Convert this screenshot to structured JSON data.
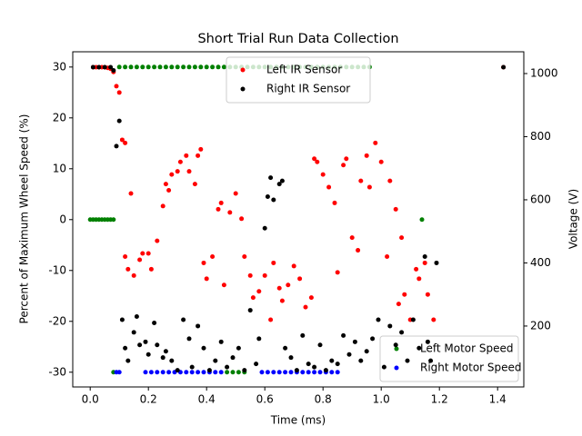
{
  "chart_data": {
    "type": "scatter",
    "title": "Short Trial Run Data Collection",
    "x_label": "Time (ms)",
    "y_label": "Percent of Maximum Wheel Speed (%)",
    "y2_label": "Voltage (V)",
    "xlim": [
      -0.06,
      1.49
    ],
    "ylim": [
      -32.9,
      33.0
    ],
    "y2lim": [
      7,
      1069
    ],
    "xticks": [
      {
        "value": 0,
        "label": "0.0"
      },
      0.2,
      0.4,
      0.6,
      0.8,
      {
        "value": 1,
        "label": "1.0"
      },
      1.2,
      1.4
    ],
    "yticks": [
      -30,
      -20,
      -10,
      0,
      10,
      20,
      30
    ],
    "y2ticks": [
      200,
      400,
      600,
      800,
      1000
    ],
    "grid": false,
    "series": [
      {
        "name": "Left Motor Speed",
        "color": "#008000",
        "legend": "lower right",
        "x": [
          0.0,
          0.01,
          0.02,
          0.03,
          0.04,
          0.05,
          0.06,
          0.07,
          0.08,
          0.1,
          0.12,
          0.14,
          0.16,
          0.18,
          0.2,
          0.22,
          0.24,
          0.26,
          0.28,
          0.3,
          0.32,
          0.34,
          0.36,
          0.38,
          0.4,
          0.42,
          0.44,
          0.46,
          0.48,
          0.5,
          0.52,
          0.54,
          0.56,
          0.58,
          0.6,
          0.62,
          0.64,
          0.66,
          0.68,
          0.7,
          0.72,
          0.74,
          0.76,
          0.78,
          0.8,
          0.82,
          0.84,
          0.86,
          0.88,
          0.9,
          0.92,
          0.94,
          0.96,
          0.08,
          0.47,
          0.49,
          0.51,
          0.53,
          1.14
        ],
        "values": [
          0,
          0,
          0,
          0,
          0,
          0,
          0,
          0,
          0,
          30,
          30,
          30,
          30,
          30,
          30,
          30,
          30,
          30,
          30,
          30,
          30,
          30,
          30,
          30,
          30,
          30,
          30,
          30,
          30,
          30,
          30,
          30,
          30,
          30,
          30,
          30,
          30,
          30,
          30,
          30,
          30,
          30,
          30,
          30,
          30,
          30,
          30,
          30,
          30,
          30,
          30,
          30,
          30,
          -30,
          -30,
          -30,
          -30,
          -30,
          0
        ]
      },
      {
        "name": "Right Motor Speed",
        "color": "#0000ff",
        "legend": "lower right",
        "x": [
          0.09,
          0.1,
          0.19,
          0.21,
          0.23,
          0.25,
          0.27,
          0.29,
          0.31,
          0.33,
          0.35,
          0.37,
          0.39,
          0.41,
          0.43,
          0.45,
          0.59,
          0.61,
          0.63,
          0.65,
          0.67,
          0.69,
          0.71,
          0.73,
          0.75,
          0.77,
          0.79,
          0.81,
          0.83,
          0.85
        ],
        "values": [
          -30,
          -30,
          -30,
          -30,
          -30,
          -30,
          -30,
          -30,
          -30,
          -30,
          -30,
          -30,
          -30,
          -30,
          -30,
          -30,
          -30,
          -30,
          -30,
          -30,
          -30,
          -30,
          -30,
          -30,
          -30,
          -30,
          -30,
          -30,
          -30,
          -30
        ]
      },
      {
        "name": "Left IR Sensor",
        "color": "#ff0000",
        "axis": "y2",
        "legend": "upper center",
        "x": [
          0.01,
          0.02,
          0.03,
          0.04,
          0.05,
          0.06,
          0.07,
          0.08,
          0.09,
          0.1,
          0.11,
          0.12,
          0.14,
          0.12,
          0.13,
          0.15,
          0.17,
          0.18,
          0.2,
          0.21,
          0.23,
          0.25,
          0.26,
          0.27,
          0.28,
          0.3,
          0.31,
          0.33,
          0.34,
          0.36,
          0.37,
          0.38,
          0.39,
          0.4,
          0.42,
          0.44,
          0.45,
          0.46,
          0.48,
          0.5,
          0.52,
          0.53,
          0.55,
          0.56,
          0.58,
          0.6,
          0.62,
          0.63,
          0.65,
          0.66,
          0.68,
          0.7,
          0.72,
          0.74,
          0.76,
          0.77,
          0.78,
          0.8,
          0.82,
          0.84,
          0.85,
          0.87,
          0.88,
          0.9,
          0.92,
          0.93,
          0.95,
          0.96,
          0.98,
          1.0,
          1.02,
          1.03,
          1.05,
          1.06,
          1.07,
          1.08,
          1.1,
          1.12,
          1.13,
          1.15,
          1.16,
          1.18,
          1.42
        ],
        "values": [
          1020,
          1020,
          1020,
          1020,
          1020,
          1018,
          1015,
          1005,
          960,
          940,
          790,
          780,
          620,
          420,
          380,
          360,
          410,
          430,
          430,
          380,
          470,
          580,
          650,
          630,
          680,
          690,
          720,
          740,
          690,
          650,
          740,
          760,
          400,
          350,
          420,
          570,
          590,
          330,
          560,
          620,
          540,
          420,
          360,
          290,
          310,
          360,
          220,
          400,
          320,
          280,
          330,
          390,
          350,
          260,
          290,
          730,
          720,
          680,
          640,
          590,
          370,
          710,
          730,
          480,
          440,
          660,
          740,
          640,
          780,
          720,
          420,
          660,
          570,
          270,
          480,
          300,
          220,
          380,
          350,
          400,
          300,
          220,
          1020
        ]
      },
      {
        "name": "Right IR Sensor",
        "color": "#000000",
        "axis": "y2",
        "legend": "upper center",
        "x": [
          0.01,
          0.03,
          0.05,
          0.07,
          0.08,
          0.09,
          0.1,
          0.11,
          0.12,
          0.13,
          0.15,
          0.16,
          0.17,
          0.19,
          0.2,
          0.22,
          0.23,
          0.25,
          0.26,
          0.28,
          0.3,
          0.32,
          0.34,
          0.35,
          0.37,
          0.39,
          0.41,
          0.43,
          0.45,
          0.47,
          0.49,
          0.51,
          0.53,
          0.55,
          0.57,
          0.58,
          0.6,
          0.61,
          0.62,
          0.63,
          0.65,
          0.66,
          0.67,
          0.69,
          0.71,
          0.73,
          0.75,
          0.77,
          0.79,
          0.81,
          0.83,
          0.85,
          0.87,
          0.89,
          0.91,
          0.93,
          0.95,
          0.97,
          0.99,
          1.01,
          1.03,
          1.05,
          1.07,
          1.09,
          1.11,
          1.13,
          1.15,
          1.16,
          1.17,
          1.19,
          1.42
        ],
        "values": [
          1020,
          1020,
          1020,
          1020,
          1010,
          770,
          850,
          220,
          130,
          90,
          180,
          230,
          140,
          150,
          110,
          210,
          140,
          100,
          120,
          90,
          60,
          220,
          160,
          70,
          200,
          130,
          60,
          90,
          150,
          70,
          100,
          130,
          60,
          250,
          80,
          160,
          510,
          610,
          670,
          600,
          650,
          660,
          130,
          100,
          60,
          170,
          80,
          70,
          140,
          60,
          90,
          80,
          170,
          110,
          150,
          90,
          120,
          160,
          220,
          70,
          200,
          140,
          180,
          90,
          220,
          130,
          420,
          150,
          90,
          400,
          1020
        ]
      }
    ]
  }
}
